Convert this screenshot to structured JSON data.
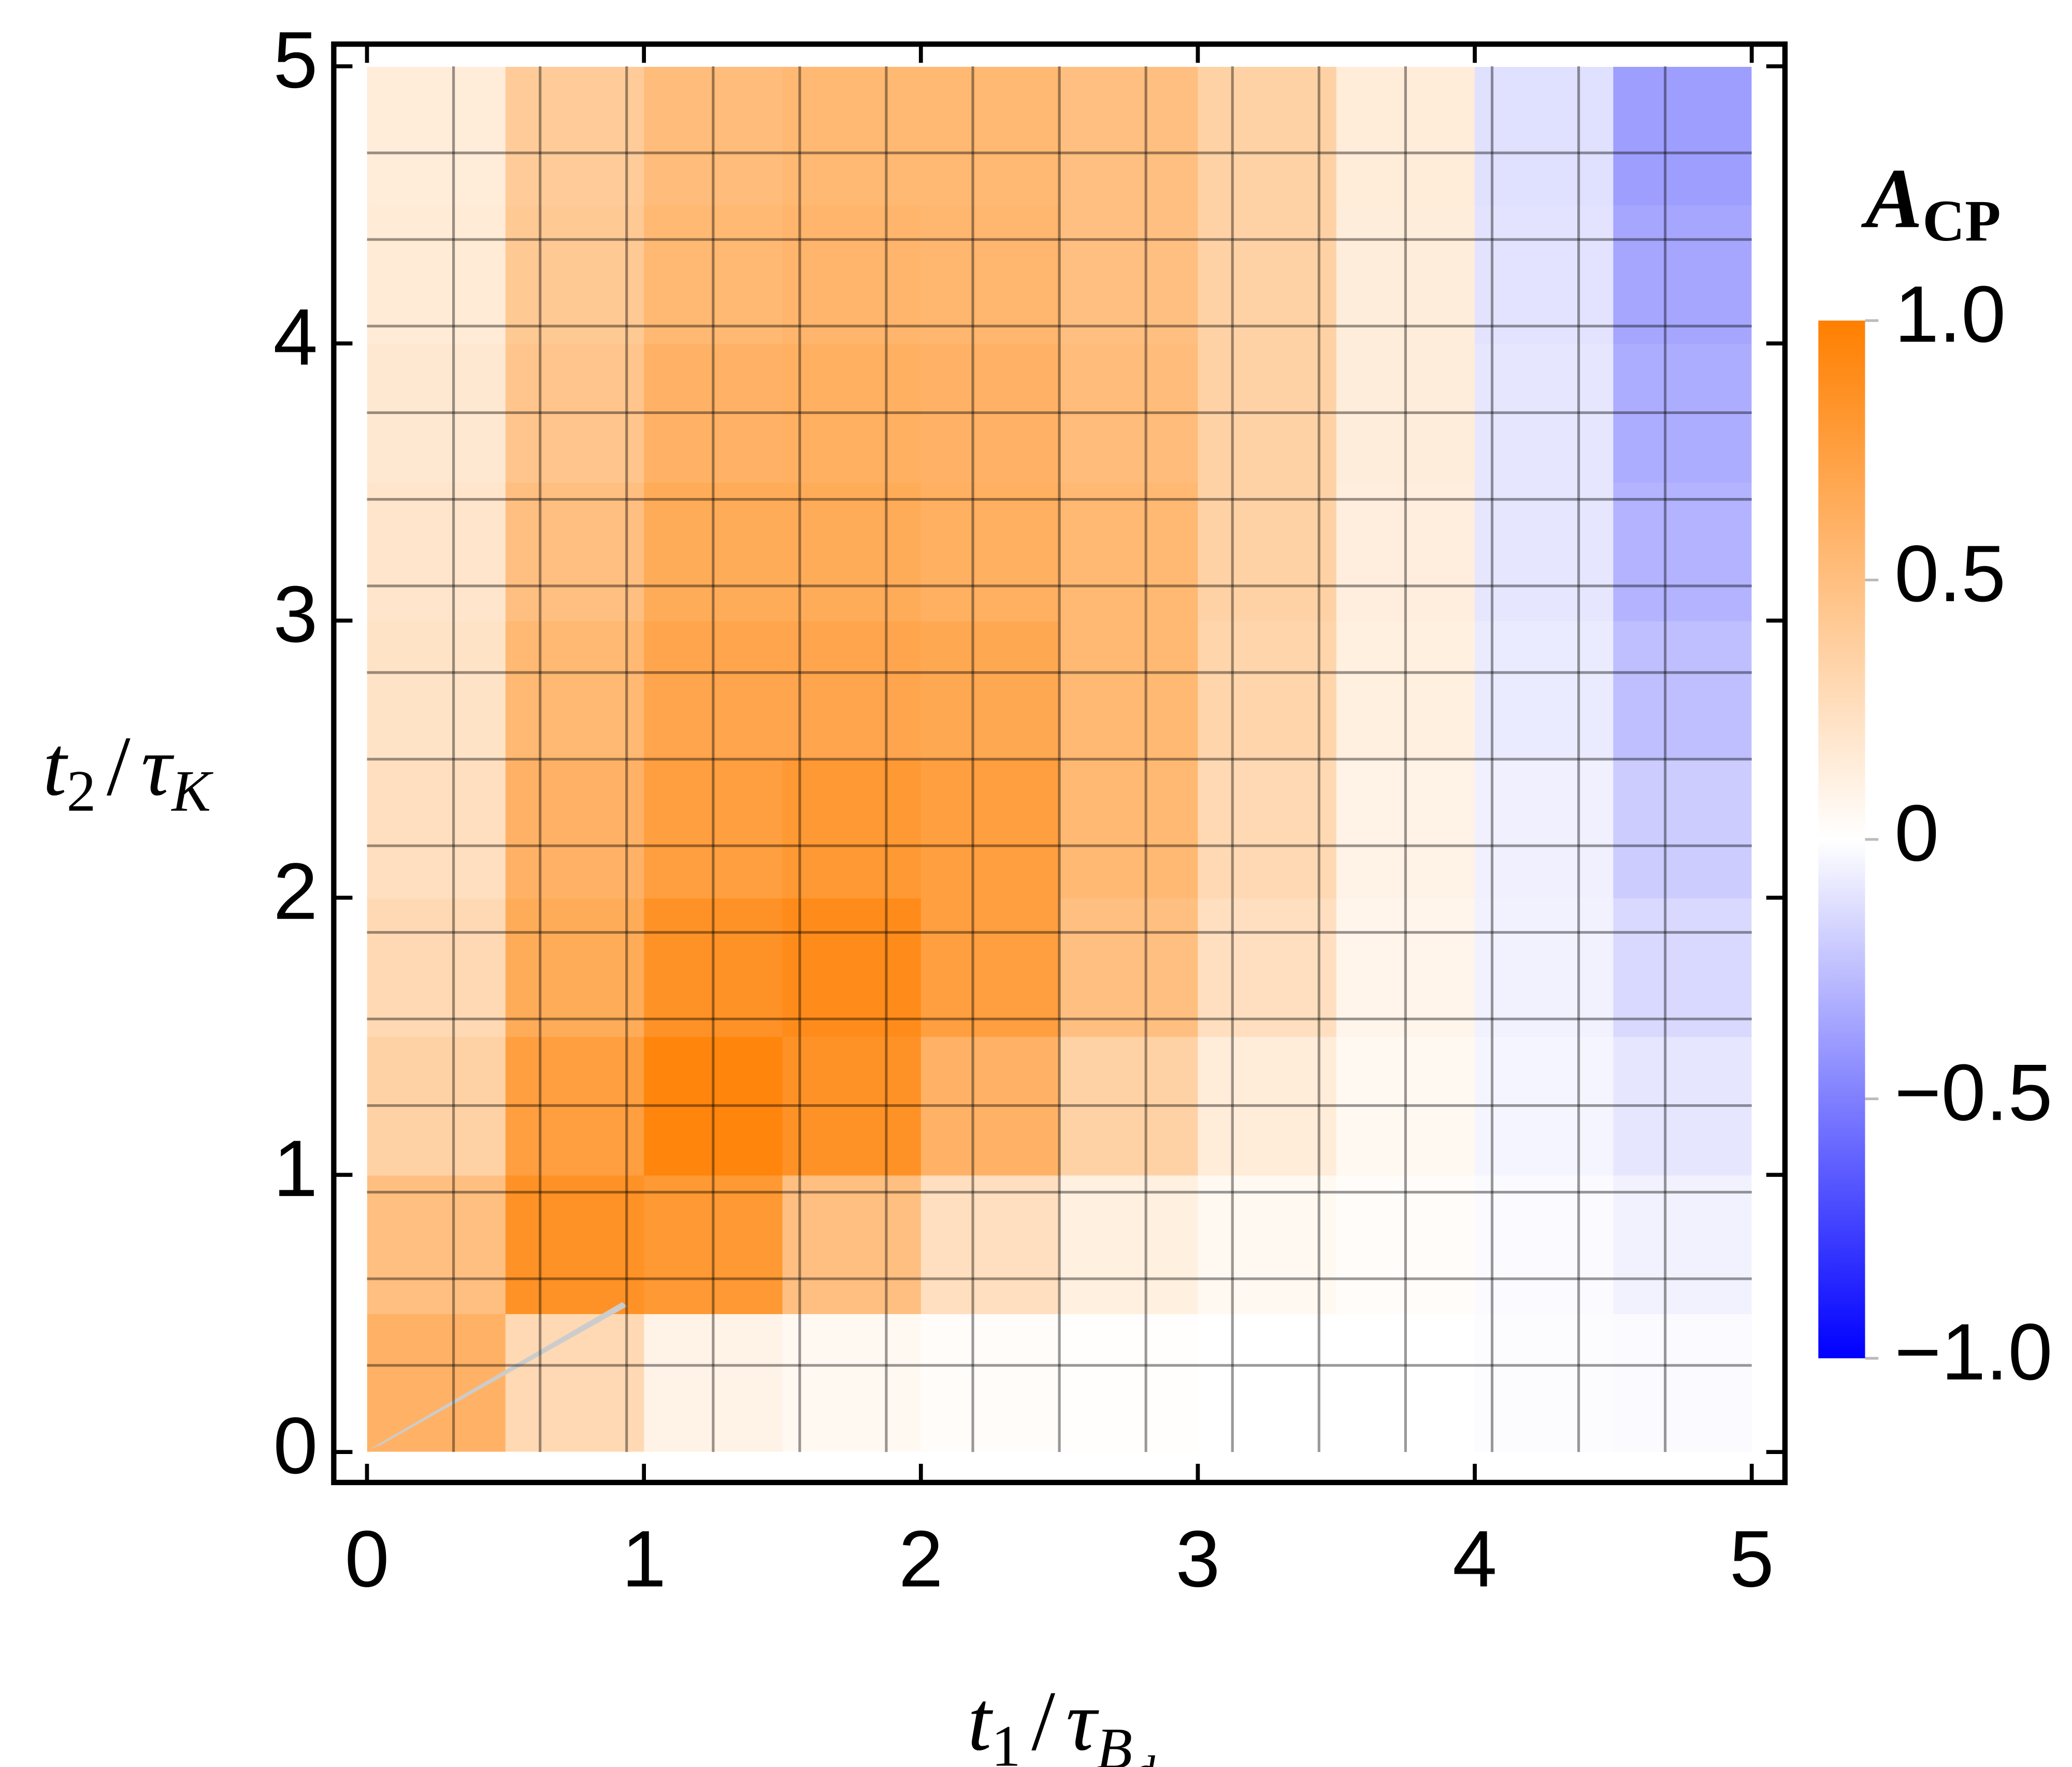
{
  "chart_data": {
    "type": "heatmap",
    "xlabel": [
      "t",
      "1",
      "/",
      "τ",
      "B",
      "d"
    ],
    "ylabel": [
      "t",
      "2",
      "/",
      "τ",
      "K"
    ],
    "colorbar_title": [
      "A",
      "CP"
    ],
    "xbins": [
      0,
      0.5,
      1,
      1.5,
      2,
      2.5,
      3,
      3.5,
      4,
      4.5,
      5
    ],
    "ybins": [
      0,
      0.5,
      1,
      1.5,
      2,
      2.5,
      3,
      3.5,
      4,
      4.5,
      5
    ],
    "z": [
      [
        0.6,
        0.3,
        0.1,
        0.05,
        0.02,
        0.01,
        0,
        0,
        -0.01,
        -0.02
      ],
      [
        0.5,
        0.85,
        0.8,
        0.5,
        0.25,
        0.12,
        0.05,
        0.02,
        -0.02,
        -0.05
      ],
      [
        0.35,
        0.75,
        0.95,
        0.85,
        0.6,
        0.35,
        0.15,
        0.05,
        -0.04,
        -0.1
      ],
      [
        0.3,
        0.65,
        0.85,
        0.9,
        0.75,
        0.5,
        0.25,
        0.08,
        -0.05,
        -0.15
      ],
      [
        0.25,
        0.6,
        0.75,
        0.8,
        0.75,
        0.55,
        0.3,
        0.1,
        -0.06,
        -0.2
      ],
      [
        0.22,
        0.55,
        0.7,
        0.7,
        0.68,
        0.55,
        0.33,
        0.12,
        -0.08,
        -0.25
      ],
      [
        0.2,
        0.5,
        0.65,
        0.65,
        0.62,
        0.55,
        0.35,
        0.13,
        -0.1,
        -0.3
      ],
      [
        0.18,
        0.45,
        0.6,
        0.62,
        0.6,
        0.52,
        0.35,
        0.14,
        -0.1,
        -0.32
      ],
      [
        0.16,
        0.42,
        0.55,
        0.58,
        0.57,
        0.5,
        0.35,
        0.14,
        -0.11,
        -0.35
      ],
      [
        0.15,
        0.4,
        0.52,
        0.55,
        0.55,
        0.5,
        0.35,
        0.15,
        -0.12,
        -0.38
      ]
    ],
    "xlim": [
      -0.12,
      5.12
    ],
    "ylim": [
      -0.11,
      5.08
    ],
    "xticks": [
      0,
      1,
      2,
      3,
      4,
      5
    ],
    "yticks": [
      0,
      1,
      2,
      3,
      4,
      5
    ],
    "mesh": 16,
    "zlim": [
      -1,
      1
    ],
    "zticks": [
      {
        "value": -1,
        "label": "−1.0"
      },
      {
        "value": -0.5,
        "label": "−0.5"
      },
      0,
      0.5,
      {
        "value": 1,
        "label": "1.0"
      }
    ],
    "colors": {
      "min": "#0000ff",
      "mid": "#ffffff",
      "max": "#ff7f00"
    }
  }
}
